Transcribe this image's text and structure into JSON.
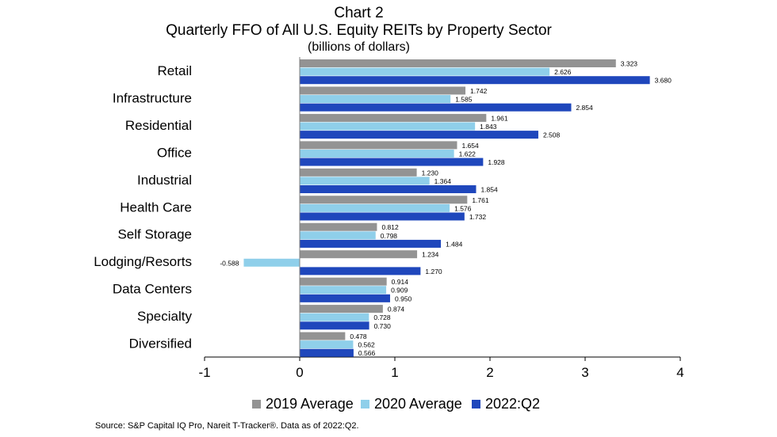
{
  "chart_data": {
    "type": "bar",
    "orientation": "horizontal",
    "title": "Chart 2",
    "subtitle": "Quarterly FFO of All U.S. Equity REITs by Property Sector",
    "units": "(billions of dollars)",
    "categories": [
      "Retail",
      "Infrastructure",
      "Residential",
      "Office",
      "Industrial",
      "Health Care",
      "Self Storage",
      "Lodging/Resorts",
      "Data Centers",
      "Specialty",
      "Diversified"
    ],
    "series": [
      {
        "name": "2019 Average",
        "color": "#939393",
        "values": [
          3.323,
          1.742,
          1.961,
          1.654,
          1.23,
          1.761,
          0.812,
          1.234,
          0.914,
          0.874,
          0.478
        ]
      },
      {
        "name": "2020 Average",
        "color": "#8FCFEA",
        "values": [
          2.626,
          1.585,
          1.843,
          1.622,
          1.364,
          1.576,
          0.798,
          -0.588,
          0.909,
          0.728,
          0.562
        ]
      },
      {
        "name": "2022:Q2",
        "color": "#1F47BC",
        "values": [
          3.68,
          2.854,
          2.508,
          1.928,
          1.854,
          1.732,
          1.484,
          1.27,
          0.95,
          0.73,
          0.566
        ]
      }
    ],
    "labels": [
      [
        "3.323",
        "1.742",
        "1.961",
        "1.654",
        "1.230",
        "1.761",
        "0.812",
        "1.234",
        "0.914",
        "0.874",
        "0.478"
      ],
      [
        "2.626",
        "1.585",
        "1.843",
        "1.622",
        "1.364",
        "1.576",
        "0.798",
        "-0.588",
        "0.909",
        "0.728",
        "0.562"
      ],
      [
        "3.680",
        "2.854",
        "2.508",
        "1.928",
        "1.854",
        "1.732",
        "1.484",
        "1.270",
        "0.950",
        "0.730",
        "0.566"
      ]
    ],
    "xlim": [
      -1,
      4
    ],
    "xticks": [
      "-1",
      "0",
      "1",
      "2",
      "3",
      "4"
    ],
    "grid": false,
    "legend_position": "bottom"
  },
  "source": "Source: S&P Capital IQ Pro, Nareit T-Tracker®. Data as of 2022:Q2."
}
